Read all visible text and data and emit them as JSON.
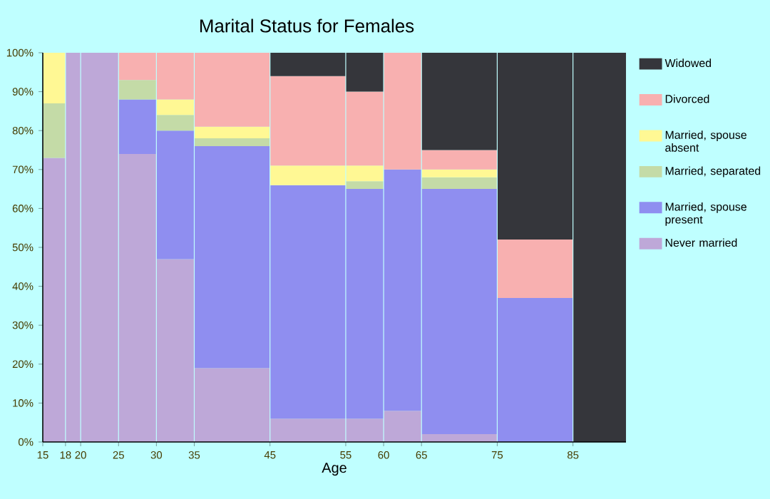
{
  "chart_data": {
    "type": "bar",
    "stacked": true,
    "title": "Marital Status for Females",
    "xlabel": "Age",
    "x": [
      16.5,
      19,
      22.5,
      27.5,
      32.5,
      40,
      50,
      57.5,
      62.5,
      70,
      80,
      88.5
    ],
    "grid": "x",
    "xlim": [
      15,
      92
    ],
    "xticks": [
      15,
      18,
      20,
      25,
      30,
      35,
      45,
      55,
      60,
      65,
      75,
      85
    ],
    "ylim": [
      0,
      100
    ],
    "yticks": [
      {
        "value": 0,
        "label": "0%"
      },
      {
        "value": 10,
        "label": "10%"
      },
      {
        "value": 20,
        "label": "20%"
      },
      {
        "value": 30,
        "label": "30%"
      },
      {
        "value": 40,
        "label": "40%"
      },
      {
        "value": 50,
        "label": "50%"
      },
      {
        "value": 60,
        "label": "60%"
      },
      {
        "value": 70,
        "label": "70%"
      },
      {
        "value": 80,
        "label": "80%"
      },
      {
        "value": 90,
        "label": "90%"
      },
      {
        "value": 100,
        "label": "100%"
      }
    ],
    "legend": "right",
    "series": [
      {
        "name": "Never married",
        "color": "#bea8d8",
        "values": [
          73,
          100,
          100,
          74,
          47,
          19,
          6,
          6,
          8,
          2,
          0,
          0
        ]
      },
      {
        "name": "Married, spouse present",
        "color": "#8f8ef0",
        "values": [
          0,
          0,
          0,
          14,
          33,
          57,
          60,
          59,
          62,
          63,
          37,
          0
        ]
      },
      {
        "name": "Married, separated",
        "color": "#c4dba7",
        "values": [
          14,
          0,
          0,
          5,
          4,
          2,
          0,
          2,
          0,
          3,
          0,
          0
        ]
      },
      {
        "name": "Married, spouse absent",
        "color": "#fff894",
        "values": [
          13,
          0,
          0,
          0,
          4,
          3,
          5,
          4,
          0,
          2,
          0,
          0
        ]
      },
      {
        "name": "Divorced",
        "color": "#f8b0b0",
        "values": [
          0,
          0,
          0,
          7,
          12,
          19,
          23,
          19,
          30,
          5,
          15,
          0
        ]
      },
      {
        "name": "Widowed",
        "color": "#35363b",
        "values": [
          0,
          0,
          0,
          0,
          0,
          0,
          6,
          10,
          0,
          25,
          48,
          100
        ]
      }
    ]
  }
}
